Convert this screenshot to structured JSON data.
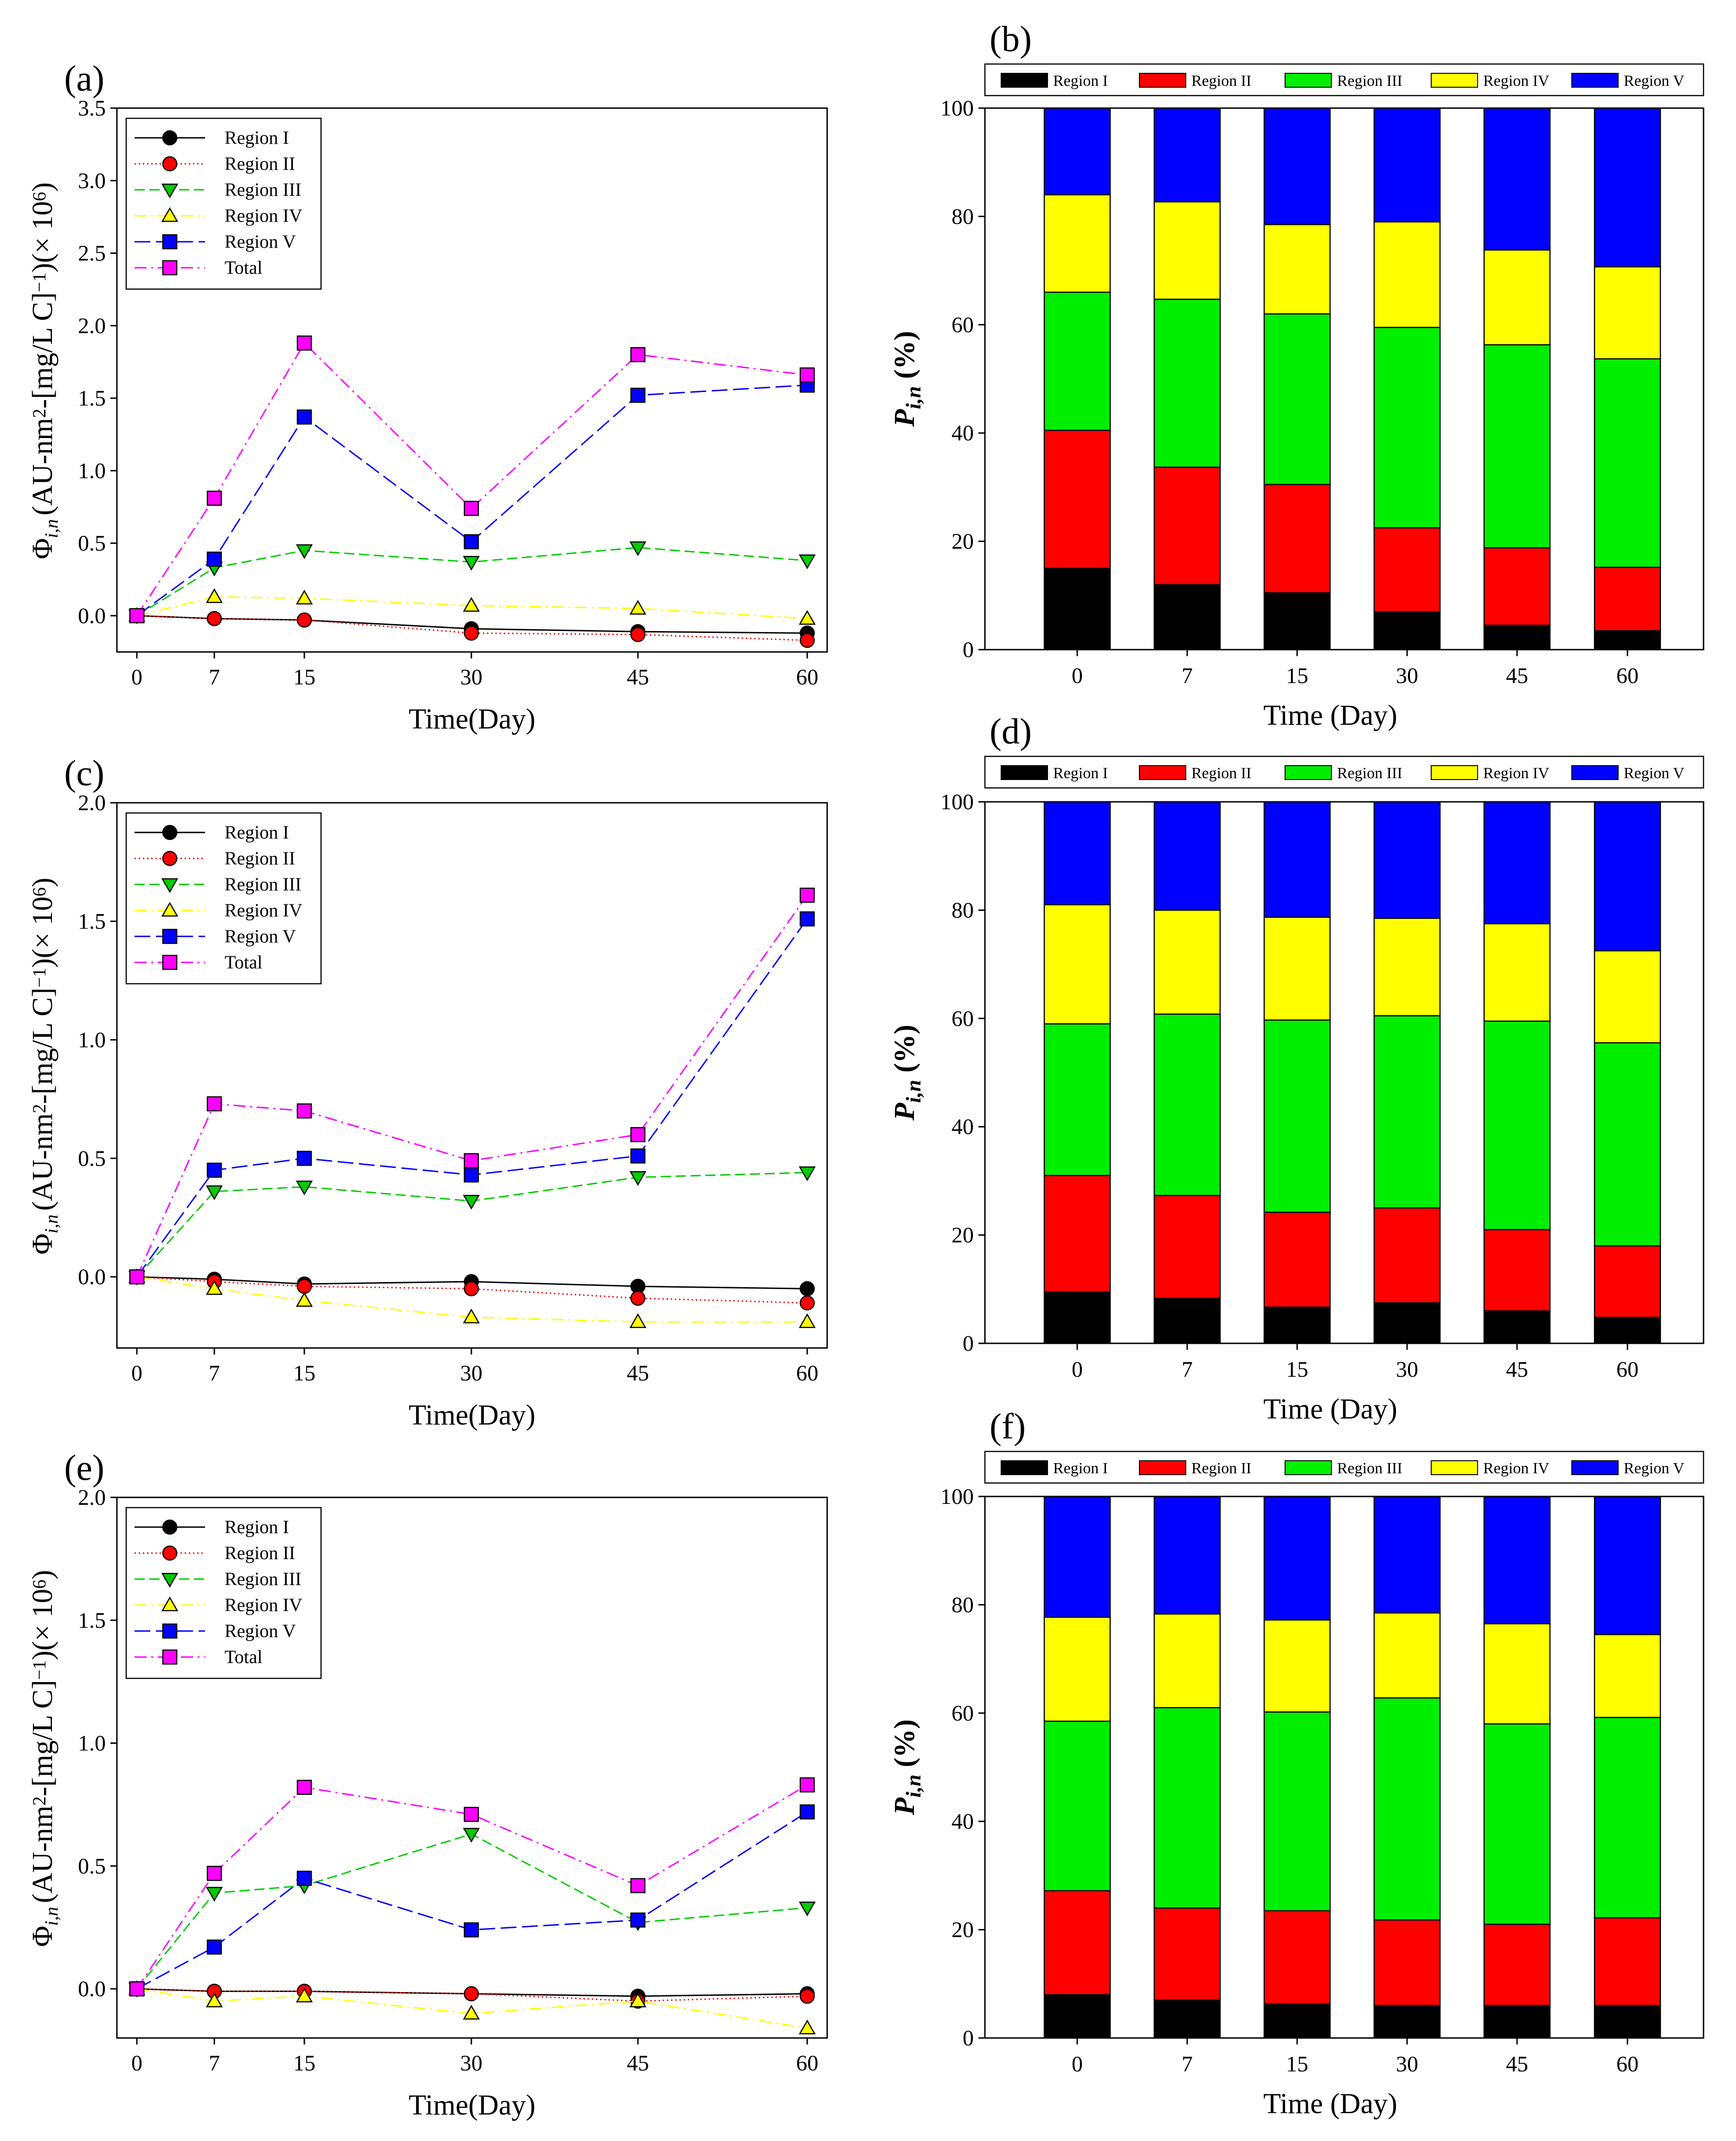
{
  "figure": {
    "line_legend_labels": [
      "Region I",
      "Region II",
      "Region III",
      "Region IV",
      "Region V",
      "Total"
    ],
    "bar_legend_labels": [
      "Region I",
      "Region II",
      "Region III",
      "Region IV",
      "Region V"
    ],
    "region_colors": {
      "Region I": "#000000",
      "Region II": "#ff0000",
      "Region III": "#00ee00",
      "Region IV": "#ffff00",
      "Region V": "#0000ff",
      "Total": "#ff00ff"
    },
    "line_styles": {
      "Region I": {
        "color": "#000000",
        "marker": "circle",
        "dash": "solid"
      },
      "Region II": {
        "color": "#ff0000",
        "marker": "circle",
        "dash": "dotted"
      },
      "Region III": {
        "color": "#00cc00",
        "marker": "triangle-down",
        "dash": "dashed"
      },
      "Region IV": {
        "color": "#ffff00",
        "marker": "triangle-up",
        "dash": "dash-dot"
      },
      "Region V": {
        "color": "#0000ff",
        "marker": "square",
        "dash": "long-dash"
      },
      "Total": {
        "color": "#ff00ff",
        "marker": "square",
        "dash": "dash-dot"
      }
    }
  },
  "chart_data": [
    {
      "id": "a",
      "panel_label": "(a)",
      "type": "line",
      "xlabel": "Time(Day)",
      "ylabel": "Φ i,n (AU-nm²-[mg/L C]⁻¹)(× 10⁶)",
      "ylabel_parts": {
        "phi": "Φ",
        "sub": "i,n",
        "main": "(AU-nm",
        "sq": "2",
        "mid": "-[mg/L C]",
        "neg": "−1",
        "close": ")(× 10",
        "exp": "6",
        "end": ")"
      },
      "x": [
        0,
        7,
        15,
        30,
        45,
        60
      ],
      "xticks": [
        "0",
        "7",
        "15",
        "30",
        "45",
        "60"
      ],
      "ylim": [
        -0.25,
        3.5
      ],
      "yticks": [
        "0.0",
        "0.5",
        "1.0",
        "1.5",
        "2.0",
        "2.5",
        "3.0",
        "3.5"
      ],
      "series": [
        {
          "name": "Region I",
          "values": [
            0.0,
            -0.02,
            -0.03,
            -0.09,
            -0.11,
            -0.12
          ]
        },
        {
          "name": "Region II",
          "values": [
            0.0,
            -0.02,
            -0.03,
            -0.12,
            -0.13,
            -0.17
          ]
        },
        {
          "name": "Region III",
          "values": [
            0.0,
            0.33,
            0.45,
            0.37,
            0.47,
            0.38
          ]
        },
        {
          "name": "Region IV",
          "values": [
            0.0,
            0.13,
            0.12,
            0.07,
            0.05,
            -0.02
          ]
        },
        {
          "name": "Region V",
          "values": [
            0.0,
            0.39,
            1.37,
            0.51,
            1.52,
            1.59
          ]
        },
        {
          "name": "Total",
          "values": [
            0.0,
            0.81,
            1.88,
            0.74,
            1.8,
            1.66
          ]
        }
      ]
    },
    {
      "id": "b",
      "panel_label": "(b)",
      "type": "bar",
      "stacked": true,
      "xlabel": "Time (Day)",
      "ylabel": "Pi,n (%)",
      "ylabel_parts": {
        "main": "P",
        "sub": "i,n",
        "rest": " (%)"
      },
      "categories": [
        "0",
        "7",
        "15",
        "30",
        "45",
        "60"
      ],
      "ylim": [
        0,
        100
      ],
      "yticks": [
        "0",
        "20",
        "40",
        "60",
        "80",
        "100"
      ],
      "series": [
        {
          "name": "Region I",
          "values": [
            15.0,
            12.0,
            10.5,
            7.0,
            4.5,
            3.5
          ]
        },
        {
          "name": "Region II",
          "values": [
            25.5,
            21.7,
            20.0,
            15.5,
            14.3,
            11.7
          ]
        },
        {
          "name": "Region III",
          "values": [
            25.5,
            31.0,
            31.5,
            37.0,
            37.5,
            38.5
          ]
        },
        {
          "name": "Region IV",
          "values": [
            18.0,
            18.0,
            16.5,
            19.5,
            17.5,
            17.0
          ]
        },
        {
          "name": "Region V",
          "values": [
            16.0,
            17.3,
            21.5,
            21.0,
            26.2,
            29.3
          ]
        }
      ]
    },
    {
      "id": "c",
      "panel_label": "(c)",
      "type": "line",
      "xlabel": "Time(Day)",
      "ylabel": "Φ i,n (AU-nm²-[mg/L C]⁻¹)(× 10⁶)",
      "ylabel_parts": {
        "phi": "Φ",
        "sub": "i,n",
        "main": "(AU-nm",
        "sq": "2",
        "mid": "-[mg/L C]",
        "neg": "−1",
        "close": ")(× 10",
        "exp": "6",
        "end": ")"
      },
      "x": [
        0,
        7,
        15,
        30,
        45,
        60
      ],
      "xticks": [
        "0",
        "7",
        "15",
        "30",
        "45",
        "60"
      ],
      "ylim": [
        -0.3,
        2.0
      ],
      "yticks": [
        "0.0",
        "0.5",
        "1.0",
        "1.5",
        "2.0"
      ],
      "series": [
        {
          "name": "Region I",
          "values": [
            0.0,
            -0.01,
            -0.03,
            -0.02,
            -0.04,
            -0.05
          ]
        },
        {
          "name": "Region II",
          "values": [
            0.0,
            -0.02,
            -0.04,
            -0.05,
            -0.09,
            -0.11
          ]
        },
        {
          "name": "Region III",
          "values": [
            0.0,
            0.36,
            0.38,
            0.32,
            0.42,
            0.44
          ]
        },
        {
          "name": "Region IV",
          "values": [
            0.0,
            -0.05,
            -0.1,
            -0.17,
            -0.19,
            -0.19
          ]
        },
        {
          "name": "Region V",
          "values": [
            0.0,
            0.45,
            0.5,
            0.43,
            0.51,
            1.51
          ]
        },
        {
          "name": "Total",
          "values": [
            0.0,
            0.73,
            0.7,
            0.49,
            0.6,
            1.61
          ]
        }
      ]
    },
    {
      "id": "d",
      "panel_label": "(d)",
      "type": "bar",
      "stacked": true,
      "xlabel": "Time (Day)",
      "ylabel": "Pi,n (%)",
      "ylabel_parts": {
        "main": "P",
        "sub": "i,n",
        "rest": " (%)"
      },
      "categories": [
        "0",
        "7",
        "15",
        "30",
        "45",
        "60"
      ],
      "ylim": [
        0,
        100
      ],
      "yticks": [
        "0",
        "20",
        "40",
        "60",
        "80",
        "100"
      ],
      "series": [
        {
          "name": "Region I",
          "values": [
            9.5,
            8.3,
            6.7,
            7.5,
            6.0,
            4.8
          ]
        },
        {
          "name": "Region II",
          "values": [
            21.5,
            19.0,
            17.5,
            17.5,
            15.0,
            13.2
          ]
        },
        {
          "name": "Region III",
          "values": [
            28.0,
            33.5,
            35.5,
            35.5,
            38.5,
            37.5
          ]
        },
        {
          "name": "Region IV",
          "values": [
            22.0,
            19.2,
            19.0,
            18.0,
            18.0,
            17.0
          ]
        },
        {
          "name": "Region V",
          "values": [
            19.0,
            20.0,
            21.3,
            21.5,
            22.5,
            27.5
          ]
        }
      ]
    },
    {
      "id": "e",
      "panel_label": "(e)",
      "type": "line",
      "xlabel": "Time(Day)",
      "ylabel": "Φ i,n (AU-nm²-[mg/L C]⁻¹)(× 10⁶)",
      "ylabel_parts": {
        "phi": "Φ",
        "sub": "i,n",
        "main": "(AU-nm",
        "sq": "2",
        "mid": "-[mg/L C]",
        "neg": "−1",
        "close": ")(× 10",
        "exp": "6",
        "end": ")"
      },
      "x": [
        0,
        7,
        15,
        30,
        45,
        60
      ],
      "xticks": [
        "0",
        "7",
        "15",
        "30",
        "45",
        "60"
      ],
      "ylim": [
        -0.2,
        2.0
      ],
      "yticks": [
        "0.0",
        "0.5",
        "1.0",
        "1.5",
        "2.0"
      ],
      "series": [
        {
          "name": "Region I",
          "values": [
            0.0,
            -0.01,
            -0.01,
            -0.02,
            -0.03,
            -0.02
          ]
        },
        {
          "name": "Region II",
          "values": [
            0.0,
            -0.01,
            -0.01,
            -0.02,
            -0.05,
            -0.03
          ]
        },
        {
          "name": "Region III",
          "values": [
            0.0,
            0.39,
            0.42,
            0.63,
            0.27,
            0.33
          ]
        },
        {
          "name": "Region IV",
          "values": [
            0.0,
            -0.05,
            -0.03,
            -0.1,
            -0.05,
            -0.16
          ]
        },
        {
          "name": "Region V",
          "values": [
            0.0,
            0.17,
            0.45,
            0.24,
            0.28,
            0.72
          ]
        },
        {
          "name": "Total",
          "values": [
            0.0,
            0.47,
            0.82,
            0.71,
            0.42,
            0.83
          ]
        }
      ]
    },
    {
      "id": "f",
      "panel_label": "(f)",
      "type": "bar",
      "stacked": true,
      "xlabel": "Time (Day)",
      "ylabel": "Pi,n (%)",
      "ylabel_parts": {
        "main": "P",
        "sub": "i,n",
        "rest": " (%)"
      },
      "categories": [
        "0",
        "7",
        "15",
        "30",
        "45",
        "60"
      ],
      "ylim": [
        0,
        100
      ],
      "yticks": [
        "0",
        "20",
        "40",
        "60",
        "80",
        "100"
      ],
      "series": [
        {
          "name": "Region I",
          "values": [
            8.0,
            7.0,
            6.3,
            6.0,
            6.0,
            6.0
          ]
        },
        {
          "name": "Region II",
          "values": [
            19.2,
            17.0,
            17.2,
            15.8,
            15.0,
            16.2
          ]
        },
        {
          "name": "Region III",
          "values": [
            31.3,
            37.0,
            36.7,
            41.0,
            37.0,
            37.0
          ]
        },
        {
          "name": "Region IV",
          "values": [
            19.2,
            17.3,
            17.0,
            15.7,
            18.5,
            15.3
          ]
        },
        {
          "name": "Region V",
          "values": [
            22.3,
            21.7,
            22.8,
            21.5,
            23.5,
            25.5
          ]
        }
      ]
    }
  ]
}
